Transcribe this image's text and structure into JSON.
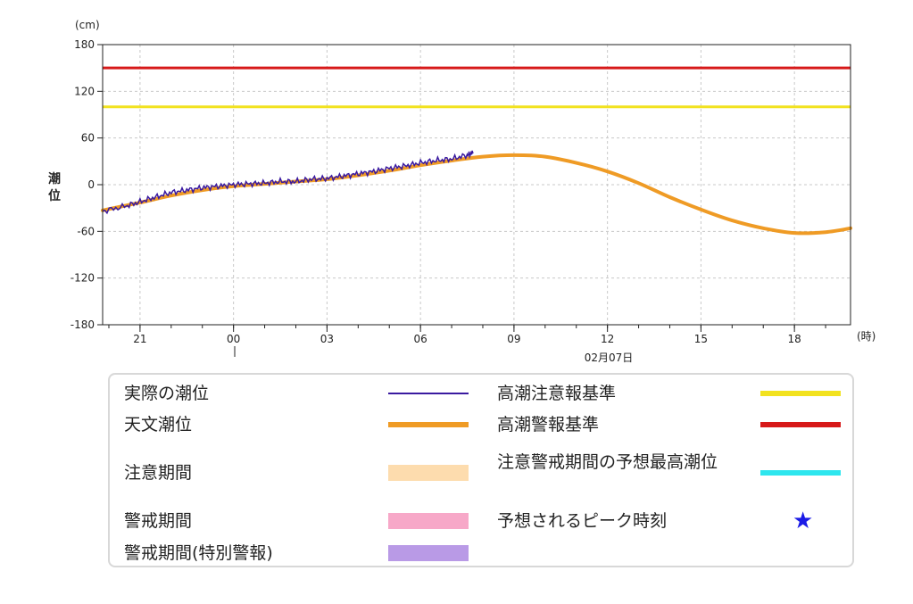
{
  "chart_data": {
    "type": "line",
    "y_unit": "(cm)",
    "ylabel": "潮位",
    "x_unit": "(時)",
    "date_label": "02月07日",
    "y_ticks": [
      180,
      120,
      60,
      0,
      -60,
      -120,
      -180
    ],
    "y_tick_labels": [
      "180",
      "120",
      "60",
      "0",
      "-60",
      "-120",
      "-180"
    ],
    "ylim": [
      -180,
      180
    ],
    "x_tick_labels": [
      "21",
      "00",
      "03",
      "06",
      "09",
      "12",
      "15",
      "18"
    ],
    "x_tick_hours": [
      21,
      24,
      27,
      30,
      33,
      36,
      39,
      42
    ],
    "xlim_hours": [
      19.8,
      43.8
    ],
    "grid": true,
    "series": [
      {
        "name": "実際の潮位",
        "color": "#3a1aa0",
        "x_hours": [
          19.8,
          20.5,
          21.0,
          21.5,
          22.0,
          22.5,
          23.0,
          23.5,
          24.0,
          24.5,
          25.0,
          25.5,
          26.0,
          26.5,
          27.0,
          27.5,
          28.0,
          28.5,
          29.0,
          29.5,
          30.0,
          30.5,
          31.0,
          31.5,
          31.7
        ],
        "values": [
          -34,
          -28,
          -22,
          -16,
          -10,
          -7,
          -4,
          -2,
          0,
          1,
          2,
          4,
          4,
          7,
          8,
          11,
          14,
          17,
          21,
          24,
          28,
          31,
          33,
          38,
          41
        ]
      },
      {
        "name": "天文潮位",
        "color": "#ef9b25",
        "x_hours": [
          19.8,
          21,
          22,
          23,
          24,
          25,
          26,
          27,
          28,
          29,
          30,
          31,
          32,
          33,
          34,
          35,
          36,
          37,
          38,
          39,
          40,
          41,
          42,
          43,
          43.8
        ],
        "values": [
          -33,
          -23,
          -14,
          -7,
          -2,
          1,
          4,
          7,
          12,
          18,
          25,
          31,
          36,
          38,
          36,
          28,
          17,
          2,
          -16,
          -32,
          -46,
          -56,
          -62,
          -61,
          -56
        ]
      },
      {
        "name": "高潮注意報基準",
        "color": "#f2e21f",
        "x_hours": [
          19.8,
          43.8
        ],
        "values": [
          100,
          100
        ]
      },
      {
        "name": "高潮警報基準",
        "color": "#d71919",
        "x_hours": [
          19.8,
          43.8
        ],
        "values": [
          150,
          150
        ]
      }
    ]
  },
  "legend": {
    "items": [
      {
        "label": "実際の潮位",
        "color": "#3a1aa0",
        "kind": "thin"
      },
      {
        "label": "天文潮位",
        "color": "#ef9b25",
        "kind": "thick"
      },
      {
        "label": "注意期間",
        "color": "#fddcae",
        "kind": "block"
      },
      {
        "label": "警戒期間",
        "color": "#f7a8c8",
        "kind": "block"
      },
      {
        "label": "警戒期間(特別警報)",
        "color": "#b99ae6",
        "kind": "block"
      },
      {
        "label": "高潮注意報基準",
        "color": "#f2e21f",
        "kind": "thick"
      },
      {
        "label": "高潮警報基準",
        "color": "#d71919",
        "kind": "thick"
      },
      {
        "label": "注意警戒期間の予想最高潮位",
        "color": "#2ee6ee",
        "kind": "thick"
      },
      {
        "label": "予想されるピーク時刻",
        "color": "#1a1ae6",
        "kind": "star",
        "icon": "star-icon"
      }
    ]
  }
}
